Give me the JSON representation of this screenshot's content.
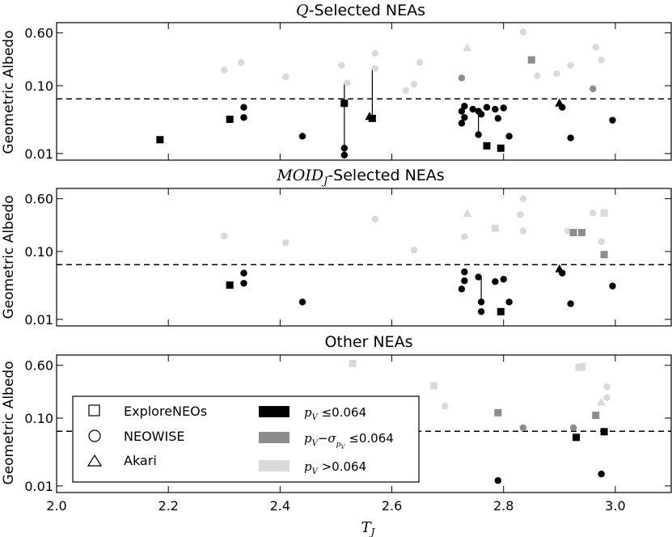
{
  "chart_data": {
    "type": "scatter",
    "xlabel": "T_J",
    "xlim": [
      2.0,
      3.1
    ],
    "x_ticks": [
      "2.0",
      "2.2",
      "2.4",
      "2.6",
      "2.8",
      "3.0"
    ],
    "ylabel": "Geometric Albedo",
    "ylim": [
      0.008,
      0.85
    ],
    "y_scale": "log",
    "y_ticks": [
      "0.01",
      "0.10",
      "0.60"
    ],
    "threshold": 0.064,
    "colors": {
      "black": "#000000",
      "gray": "#8c8c8c",
      "light": "#d9d9d9"
    },
    "legend": {
      "markers": [
        {
          "marker": "square",
          "label": "ExploreNEOs"
        },
        {
          "marker": "circle",
          "label": "NEOWISE"
        },
        {
          "marker": "triangle",
          "label": "Akari"
        }
      ],
      "colors": [
        {
          "color": "black",
          "label": "p_V ≤0.064"
        },
        {
          "color": "gray",
          "label": "p_V−σ_pV ≤0.064"
        },
        {
          "color": "light",
          "label": "p_V >0.064"
        }
      ]
    },
    "panels": [
      {
        "title": "Q-Selected NEAs",
        "points": [
          {
            "x": 2.185,
            "y": 0.016,
            "marker": "square",
            "color": "black"
          },
          {
            "x": 2.31,
            "y": 0.032,
            "marker": "square",
            "color": "black"
          },
          {
            "x": 2.335,
            "y": 0.048,
            "marker": "circle",
            "color": "black"
          },
          {
            "x": 2.335,
            "y": 0.034,
            "marker": "circle",
            "color": "black"
          },
          {
            "x": 2.44,
            "y": 0.018,
            "marker": "circle",
            "color": "black"
          },
          {
            "x": 2.515,
            "y": 0.055,
            "marker": "square",
            "color": "black"
          },
          {
            "x": 2.515,
            "y": 0.012,
            "marker": "circle",
            "color": "black"
          },
          {
            "x": 2.515,
            "y": 0.0095,
            "marker": "circle",
            "color": "black"
          },
          {
            "x": 2.56,
            "y": 0.035,
            "marker": "triangle",
            "color": "black"
          },
          {
            "x": 2.565,
            "y": 0.033,
            "marker": "square",
            "color": "black"
          },
          {
            "x": 2.73,
            "y": 0.05,
            "marker": "circle",
            "color": "black"
          },
          {
            "x": 2.725,
            "y": 0.042,
            "marker": "circle",
            "color": "black"
          },
          {
            "x": 2.73,
            "y": 0.034,
            "marker": "circle",
            "color": "black"
          },
          {
            "x": 2.725,
            "y": 0.028,
            "marker": "circle",
            "color": "black"
          },
          {
            "x": 2.745,
            "y": 0.045,
            "marker": "circle",
            "color": "black"
          },
          {
            "x": 2.755,
            "y": 0.042,
            "marker": "circle",
            "color": "black"
          },
          {
            "x": 2.76,
            "y": 0.038,
            "marker": "circle",
            "color": "black"
          },
          {
            "x": 2.755,
            "y": 0.019,
            "marker": "circle",
            "color": "black"
          },
          {
            "x": 2.77,
            "y": 0.048,
            "marker": "circle",
            "color": "black"
          },
          {
            "x": 2.77,
            "y": 0.013,
            "marker": "square",
            "color": "black"
          },
          {
            "x": 2.785,
            "y": 0.045,
            "marker": "circle",
            "color": "black"
          },
          {
            "x": 2.79,
            "y": 0.033,
            "marker": "circle",
            "color": "black"
          },
          {
            "x": 2.8,
            "y": 0.047,
            "marker": "circle",
            "color": "black"
          },
          {
            "x": 2.795,
            "y": 0.012,
            "marker": "square",
            "color": "black"
          },
          {
            "x": 2.81,
            "y": 0.018,
            "marker": "circle",
            "color": "black"
          },
          {
            "x": 2.9,
            "y": 0.055,
            "marker": "triangle",
            "color": "black"
          },
          {
            "x": 2.905,
            "y": 0.048,
            "marker": "circle",
            "color": "black"
          },
          {
            "x": 2.92,
            "y": 0.017,
            "marker": "circle",
            "color": "black"
          },
          {
            "x": 2.995,
            "y": 0.031,
            "marker": "circle",
            "color": "black"
          },
          {
            "x": 2.725,
            "y": 0.13,
            "marker": "circle",
            "color": "gray"
          },
          {
            "x": 2.85,
            "y": 0.24,
            "marker": "square",
            "color": "gray"
          },
          {
            "x": 2.96,
            "y": 0.09,
            "marker": "circle",
            "color": "gray"
          },
          {
            "x": 2.3,
            "y": 0.17,
            "marker": "circle",
            "color": "light"
          },
          {
            "x": 2.33,
            "y": 0.22,
            "marker": "circle",
            "color": "light"
          },
          {
            "x": 2.41,
            "y": 0.135,
            "marker": "circle",
            "color": "light"
          },
          {
            "x": 2.51,
            "y": 0.2,
            "marker": "circle",
            "color": "light"
          },
          {
            "x": 2.52,
            "y": 0.11,
            "marker": "circle",
            "color": "light"
          },
          {
            "x": 2.57,
            "y": 0.3,
            "marker": "circle",
            "color": "light"
          },
          {
            "x": 2.57,
            "y": 0.18,
            "marker": "circle",
            "color": "light"
          },
          {
            "x": 2.625,
            "y": 0.085,
            "marker": "circle",
            "color": "light"
          },
          {
            "x": 2.64,
            "y": 0.105,
            "marker": "circle",
            "color": "light"
          },
          {
            "x": 2.65,
            "y": 0.22,
            "marker": "circle",
            "color": "light"
          },
          {
            "x": 2.735,
            "y": 0.36,
            "marker": "triangle",
            "color": "light"
          },
          {
            "x": 2.835,
            "y": 0.62,
            "marker": "circle",
            "color": "light"
          },
          {
            "x": 2.86,
            "y": 0.14,
            "marker": "circle",
            "color": "light"
          },
          {
            "x": 2.895,
            "y": 0.15,
            "marker": "circle",
            "color": "light"
          },
          {
            "x": 2.92,
            "y": 0.2,
            "marker": "circle",
            "color": "light"
          },
          {
            "x": 2.965,
            "y": 0.37,
            "marker": "circle",
            "color": "light"
          },
          {
            "x": 2.975,
            "y": 0.24,
            "marker": "circle",
            "color": "light"
          }
        ],
        "links": [
          [
            2.515,
            0.012,
            0.11
          ],
          [
            2.565,
            0.033,
            0.18
          ],
          [
            2.755,
            0.019,
            0.038
          ]
        ]
      },
      {
        "title": "MOID_J-Selected NEAs",
        "points": [
          {
            "x": 2.31,
            "y": 0.032,
            "marker": "square",
            "color": "black"
          },
          {
            "x": 2.335,
            "y": 0.048,
            "marker": "circle",
            "color": "black"
          },
          {
            "x": 2.335,
            "y": 0.034,
            "marker": "circle",
            "color": "black"
          },
          {
            "x": 2.44,
            "y": 0.018,
            "marker": "circle",
            "color": "black"
          },
          {
            "x": 2.73,
            "y": 0.05,
            "marker": "circle",
            "color": "black"
          },
          {
            "x": 2.73,
            "y": 0.037,
            "marker": "circle",
            "color": "black"
          },
          {
            "x": 2.725,
            "y": 0.028,
            "marker": "circle",
            "color": "black"
          },
          {
            "x": 2.755,
            "y": 0.042,
            "marker": "circle",
            "color": "black"
          },
          {
            "x": 2.76,
            "y": 0.018,
            "marker": "circle",
            "color": "black"
          },
          {
            "x": 2.76,
            "y": 0.013,
            "marker": "circle",
            "color": "black"
          },
          {
            "x": 2.785,
            "y": 0.036,
            "marker": "circle",
            "color": "black"
          },
          {
            "x": 2.8,
            "y": 0.039,
            "marker": "circle",
            "color": "black"
          },
          {
            "x": 2.795,
            "y": 0.013,
            "marker": "square",
            "color": "black"
          },
          {
            "x": 2.81,
            "y": 0.018,
            "marker": "circle",
            "color": "black"
          },
          {
            "x": 2.9,
            "y": 0.055,
            "marker": "triangle",
            "color": "black"
          },
          {
            "x": 2.905,
            "y": 0.048,
            "marker": "circle",
            "color": "black"
          },
          {
            "x": 2.92,
            "y": 0.017,
            "marker": "circle",
            "color": "black"
          },
          {
            "x": 2.995,
            "y": 0.031,
            "marker": "circle",
            "color": "black"
          },
          {
            "x": 2.925,
            "y": 0.19,
            "marker": "square",
            "color": "gray"
          },
          {
            "x": 2.94,
            "y": 0.19,
            "marker": "square",
            "color": "gray"
          },
          {
            "x": 2.98,
            "y": 0.09,
            "marker": "square",
            "color": "gray"
          },
          {
            "x": 2.3,
            "y": 0.17,
            "marker": "circle",
            "color": "light"
          },
          {
            "x": 2.41,
            "y": 0.135,
            "marker": "circle",
            "color": "light"
          },
          {
            "x": 2.57,
            "y": 0.3,
            "marker": "circle",
            "color": "light"
          },
          {
            "x": 2.64,
            "y": 0.105,
            "marker": "circle",
            "color": "light"
          },
          {
            "x": 2.73,
            "y": 0.165,
            "marker": "circle",
            "color": "light"
          },
          {
            "x": 2.735,
            "y": 0.36,
            "marker": "triangle",
            "color": "light"
          },
          {
            "x": 2.785,
            "y": 0.22,
            "marker": "square",
            "color": "light"
          },
          {
            "x": 2.83,
            "y": 0.35,
            "marker": "circle",
            "color": "light"
          },
          {
            "x": 2.835,
            "y": 0.6,
            "marker": "circle",
            "color": "light"
          },
          {
            "x": 2.835,
            "y": 0.2,
            "marker": "circle",
            "color": "light"
          },
          {
            "x": 2.915,
            "y": 0.2,
            "marker": "circle",
            "color": "light"
          },
          {
            "x": 2.96,
            "y": 0.37,
            "marker": "circle",
            "color": "light"
          },
          {
            "x": 2.98,
            "y": 0.37,
            "marker": "square",
            "color": "light"
          },
          {
            "x": 2.975,
            "y": 0.14,
            "marker": "circle",
            "color": "light"
          }
        ],
        "links": [
          [
            2.76,
            0.018,
            0.042
          ]
        ]
      },
      {
        "title": "Other NEAs",
        "points": [
          {
            "x": 2.79,
            "y": 0.012,
            "marker": "circle",
            "color": "black"
          },
          {
            "x": 2.93,
            "y": 0.052,
            "marker": "square",
            "color": "black"
          },
          {
            "x": 2.98,
            "y": 0.063,
            "marker": "square",
            "color": "black"
          },
          {
            "x": 2.975,
            "y": 0.015,
            "marker": "circle",
            "color": "black"
          },
          {
            "x": 2.79,
            "y": 0.12,
            "marker": "square",
            "color": "gray"
          },
          {
            "x": 2.835,
            "y": 0.072,
            "marker": "circle",
            "color": "gray"
          },
          {
            "x": 2.925,
            "y": 0.072,
            "marker": "circle",
            "color": "gray"
          },
          {
            "x": 2.965,
            "y": 0.11,
            "marker": "square",
            "color": "gray"
          },
          {
            "x": 2.53,
            "y": 0.64,
            "marker": "square",
            "color": "light"
          },
          {
            "x": 2.675,
            "y": 0.3,
            "marker": "square",
            "color": "light"
          },
          {
            "x": 2.695,
            "y": 0.15,
            "marker": "circle",
            "color": "light"
          },
          {
            "x": 2.935,
            "y": 0.56,
            "marker": "square",
            "color": "light"
          },
          {
            "x": 2.94,
            "y": 0.57,
            "marker": "square",
            "color": "light"
          },
          {
            "x": 2.975,
            "y": 0.17,
            "marker": "triangle",
            "color": "light"
          },
          {
            "x": 2.985,
            "y": 0.29,
            "marker": "circle",
            "color": "light"
          },
          {
            "x": 2.985,
            "y": 0.2,
            "marker": "circle",
            "color": "light"
          }
        ],
        "links": []
      }
    ]
  }
}
